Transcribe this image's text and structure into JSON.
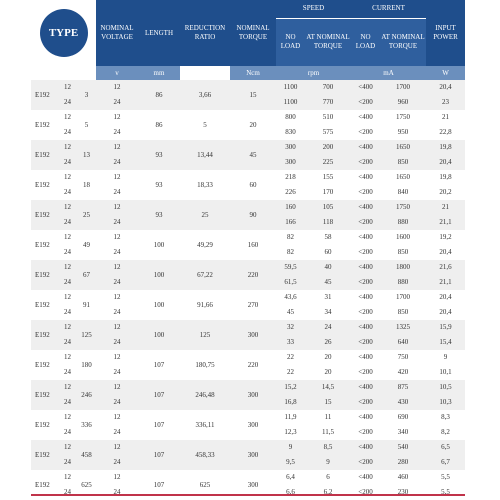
{
  "header": {
    "type": "TYPE",
    "nominal_voltage": "NOMINAL VOLTAGE",
    "length": "LENGTH",
    "reduction_ratio": "REDUCTION RATIO",
    "nominal_torque": "NOMINAL TORQUE",
    "speed": "SPEED",
    "speed_no_load": "NO LOAD",
    "speed_nominal": "AT NOMINAL TORQUE",
    "current": "CURRENT",
    "current_no_load": "NO LOAD",
    "current_nominal": "AT NOMINAL TORQUE",
    "input_power": "INPUT POWER"
  },
  "units": {
    "voltage": "v",
    "length": "mm",
    "torque": "Ncm",
    "speed": "rpm",
    "current": "mA",
    "power": "W"
  },
  "rows": [
    {
      "type": "E192",
      "ratio_n": "3",
      "length": "86",
      "ratio": "3,66",
      "torque": "15",
      "v": [
        "12",
        "24"
      ],
      "v2": [
        "12",
        "24"
      ],
      "sp0": [
        "1100",
        "1100"
      ],
      "spn": [
        "700",
        "770"
      ],
      "c0": [
        "<400",
        "<200"
      ],
      "cn": [
        "1700",
        "960"
      ],
      "p": [
        "20,4",
        "23"
      ]
    },
    {
      "type": "E192",
      "ratio_n": "5",
      "length": "86",
      "ratio": "5",
      "torque": "20",
      "v": [
        "12",
        "24"
      ],
      "v2": [
        "12",
        "24"
      ],
      "sp0": [
        "800",
        "830"
      ],
      "spn": [
        "510",
        "575"
      ],
      "c0": [
        "<400",
        "<200"
      ],
      "cn": [
        "1750",
        "950"
      ],
      "p": [
        "21",
        "22,8"
      ]
    },
    {
      "type": "E192",
      "ratio_n": "13",
      "length": "93",
      "ratio": "13,44",
      "torque": "45",
      "v": [
        "12",
        "24"
      ],
      "v2": [
        "12",
        "24"
      ],
      "sp0": [
        "300",
        "300"
      ],
      "spn": [
        "200",
        "225"
      ],
      "c0": [
        "<400",
        "<200"
      ],
      "cn": [
        "1650",
        "850"
      ],
      "p": [
        "19,8",
        "20,4"
      ]
    },
    {
      "type": "E192",
      "ratio_n": "18",
      "length": "93",
      "ratio": "18,33",
      "torque": "60",
      "v": [
        "12",
        "24"
      ],
      "v2": [
        "12",
        "24"
      ],
      "sp0": [
        "218",
        "226"
      ],
      "spn": [
        "155",
        "170"
      ],
      "c0": [
        "<400",
        "<200"
      ],
      "cn": [
        "1650",
        "840"
      ],
      "p": [
        "19,8",
        "20,2"
      ]
    },
    {
      "type": "E192",
      "ratio_n": "25",
      "length": "93",
      "ratio": "25",
      "torque": "90",
      "v": [
        "12",
        "24"
      ],
      "v2": [
        "12",
        "24"
      ],
      "sp0": [
        "160",
        "166"
      ],
      "spn": [
        "105",
        "118"
      ],
      "c0": [
        "<400",
        "<200"
      ],
      "cn": [
        "1750",
        "880"
      ],
      "p": [
        "21",
        "21,1"
      ]
    },
    {
      "type": "E192",
      "ratio_n": "49",
      "length": "100",
      "ratio": "49,29",
      "torque": "160",
      "v": [
        "12",
        "24"
      ],
      "v2": [
        "12",
        "24"
      ],
      "sp0": [
        "82",
        "82"
      ],
      "spn": [
        "58",
        "60"
      ],
      "c0": [
        "<400",
        "<200"
      ],
      "cn": [
        "1600",
        "850"
      ],
      "p": [
        "19,2",
        "20,4"
      ]
    },
    {
      "type": "E192",
      "ratio_n": "67",
      "length": "100",
      "ratio": "67,22",
      "torque": "220",
      "v": [
        "12",
        "24"
      ],
      "v2": [
        "12",
        "24"
      ],
      "sp0": [
        "59,5",
        "61,5"
      ],
      "spn": [
        "40",
        "45"
      ],
      "c0": [
        "<400",
        "<200"
      ],
      "cn": [
        "1800",
        "880"
      ],
      "p": [
        "21,6",
        "21,1"
      ]
    },
    {
      "type": "E192",
      "ratio_n": "91",
      "length": "100",
      "ratio": "91,66",
      "torque": "270",
      "v": [
        "12",
        "24"
      ],
      "v2": [
        "12",
        "24"
      ],
      "sp0": [
        "43,6",
        "45"
      ],
      "spn": [
        "31",
        "34"
      ],
      "c0": [
        "<400",
        "<200"
      ],
      "cn": [
        "1700",
        "850"
      ],
      "p": [
        "20,4",
        "20,4"
      ]
    },
    {
      "type": "E192",
      "ratio_n": "125",
      "length": "100",
      "ratio": "125",
      "torque": "300",
      "v": [
        "12",
        "24"
      ],
      "v2": [
        "12",
        "24"
      ],
      "sp0": [
        "32",
        "33"
      ],
      "spn": [
        "24",
        "26"
      ],
      "c0": [
        "<400",
        "<200"
      ],
      "cn": [
        "1325",
        "640"
      ],
      "p": [
        "15,9",
        "15,4"
      ]
    },
    {
      "type": "E192",
      "ratio_n": "180",
      "length": "107",
      "ratio": "180,75",
      "torque": "220",
      "v": [
        "12",
        "24"
      ],
      "v2": [
        "12",
        "24"
      ],
      "sp0": [
        "22",
        "22"
      ],
      "spn": [
        "20",
        "20"
      ],
      "c0": [
        "<400",
        "<200"
      ],
      "cn": [
        "750",
        "420"
      ],
      "p": [
        "9",
        "10,1"
      ]
    },
    {
      "type": "E192",
      "ratio_n": "246",
      "length": "107",
      "ratio": "246,48",
      "torque": "300",
      "v": [
        "12",
        "24"
      ],
      "v2": [
        "12",
        "24"
      ],
      "sp0": [
        "15,2",
        "16,8"
      ],
      "spn": [
        "14,5",
        "15"
      ],
      "c0": [
        "<400",
        "<200"
      ],
      "cn": [
        "875",
        "430"
      ],
      "p": [
        "10,5",
        "10,3"
      ]
    },
    {
      "type": "E192",
      "ratio_n": "336",
      "length": "107",
      "ratio": "336,11",
      "torque": "300",
      "v": [
        "12",
        "24"
      ],
      "v2": [
        "12",
        "24"
      ],
      "sp0": [
        "11,9",
        "12,3"
      ],
      "spn": [
        "11",
        "11,5"
      ],
      "c0": [
        "<400",
        "<200"
      ],
      "cn": [
        "690",
        "340"
      ],
      "p": [
        "8,3",
        "8,2"
      ]
    },
    {
      "type": "E192",
      "ratio_n": "458",
      "length": "107",
      "ratio": "458,33",
      "torque": "300",
      "v": [
        "12",
        "24"
      ],
      "v2": [
        "12",
        "24"
      ],
      "sp0": [
        "9",
        "9,5"
      ],
      "spn": [
        "8,5",
        "9"
      ],
      "c0": [
        "<400",
        "<200"
      ],
      "cn": [
        "540",
        "280"
      ],
      "p": [
        "6,5",
        "6,7"
      ]
    },
    {
      "type": "E192",
      "ratio_n": "625",
      "length": "107",
      "ratio": "625",
      "torque": "300",
      "v": [
        "12",
        "24"
      ],
      "v2": [
        "12",
        "24"
      ],
      "sp0": [
        "6,4",
        "6,6"
      ],
      "spn": [
        "6",
        "6,2"
      ],
      "c0": [
        "<400",
        "<200"
      ],
      "cn": [
        "460",
        "230"
      ],
      "p": [
        "5,5",
        "5,5"
      ]
    }
  ]
}
